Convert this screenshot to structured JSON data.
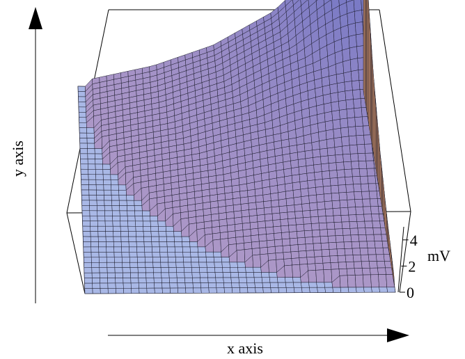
{
  "chart_data": {
    "type": "surface",
    "title": "",
    "xlabel": "x axis",
    "ylabel": "y axis",
    "zlabel": "mV",
    "zticks": [
      "0",
      "2",
      "4"
    ],
    "zlim": [
      0,
      5
    ],
    "grid_size": 40,
    "surface": {
      "description_hidden": "",
      "region": "quarter-circle centered at far-right corner, radius 0.92 of plate",
      "values_at_radius": [
        {
          "r": 0.0,
          "mV": 4.6
        },
        {
          "r": 0.15,
          "mV": 2.8
        },
        {
          "r": 0.3,
          "mV": 1.8
        },
        {
          "r": 0.5,
          "mV": 1.0
        },
        {
          "r": 0.7,
          "mV": 0.5
        },
        {
          "r": 0.92,
          "mV": 0.15
        }
      ]
    },
    "colors": {
      "plate": "#a9b8e6",
      "surface_low": "#c9a8c8",
      "surface_high": "#5866c4",
      "wall_edge": "#f0a878",
      "gridline": "#1a1a2a"
    }
  }
}
